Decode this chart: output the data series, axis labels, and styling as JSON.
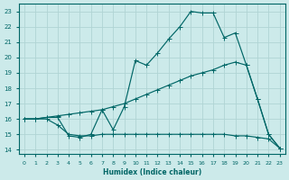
{
  "xlabel": "Humidex (Indice chaleur)",
  "xlim": [
    -0.5,
    23.5
  ],
  "ylim": [
    13.7,
    23.5
  ],
  "xticks": [
    0,
    1,
    2,
    3,
    4,
    5,
    6,
    7,
    8,
    9,
    10,
    11,
    12,
    13,
    14,
    15,
    16,
    17,
    18,
    19,
    20,
    21,
    22,
    23
  ],
  "yticks": [
    14,
    15,
    16,
    17,
    18,
    19,
    20,
    21,
    22,
    23
  ],
  "bg_color": "#cceaea",
  "grid_color": "#b0d4d4",
  "line_color": "#006666",
  "line1_x": [
    0,
    1,
    2,
    3,
    4,
    5,
    6,
    7,
    8,
    9,
    10,
    11,
    12,
    13,
    14,
    15,
    16,
    17,
    18,
    19,
    20,
    21,
    22,
    23
  ],
  "line1_y": [
    16.0,
    16.0,
    16.1,
    16.1,
    14.9,
    14.8,
    15.0,
    16.6,
    15.3,
    16.8,
    19.8,
    19.5,
    20.3,
    21.2,
    22.0,
    23.0,
    22.9,
    22.9,
    21.3,
    21.6,
    19.5,
    17.3,
    15.0,
    14.1
  ],
  "line2_x": [
    0,
    1,
    2,
    3,
    4,
    5,
    6,
    7,
    8,
    9,
    10,
    11,
    12,
    13,
    14,
    15,
    16,
    17,
    18,
    19,
    20,
    21,
    22,
    23
  ],
  "line2_y": [
    16.0,
    16.0,
    16.0,
    15.6,
    15.0,
    14.9,
    14.9,
    15.0,
    15.0,
    15.0,
    15.0,
    15.0,
    15.0,
    15.0,
    15.0,
    15.0,
    15.0,
    15.0,
    15.0,
    14.9,
    14.9,
    14.8,
    14.7,
    14.1
  ],
  "line3_x": [
    0,
    1,
    2,
    3,
    4,
    5,
    6,
    7,
    8,
    9,
    10,
    11,
    12,
    13,
    14,
    15,
    16,
    17,
    18,
    19,
    20,
    21,
    22,
    23
  ],
  "line3_y": [
    16.0,
    16.0,
    16.1,
    16.2,
    16.3,
    16.4,
    16.5,
    16.6,
    16.8,
    17.0,
    17.3,
    17.6,
    17.9,
    18.2,
    18.5,
    18.8,
    19.0,
    19.2,
    19.5,
    19.7,
    19.5,
    17.3,
    15.0,
    14.1
  ]
}
